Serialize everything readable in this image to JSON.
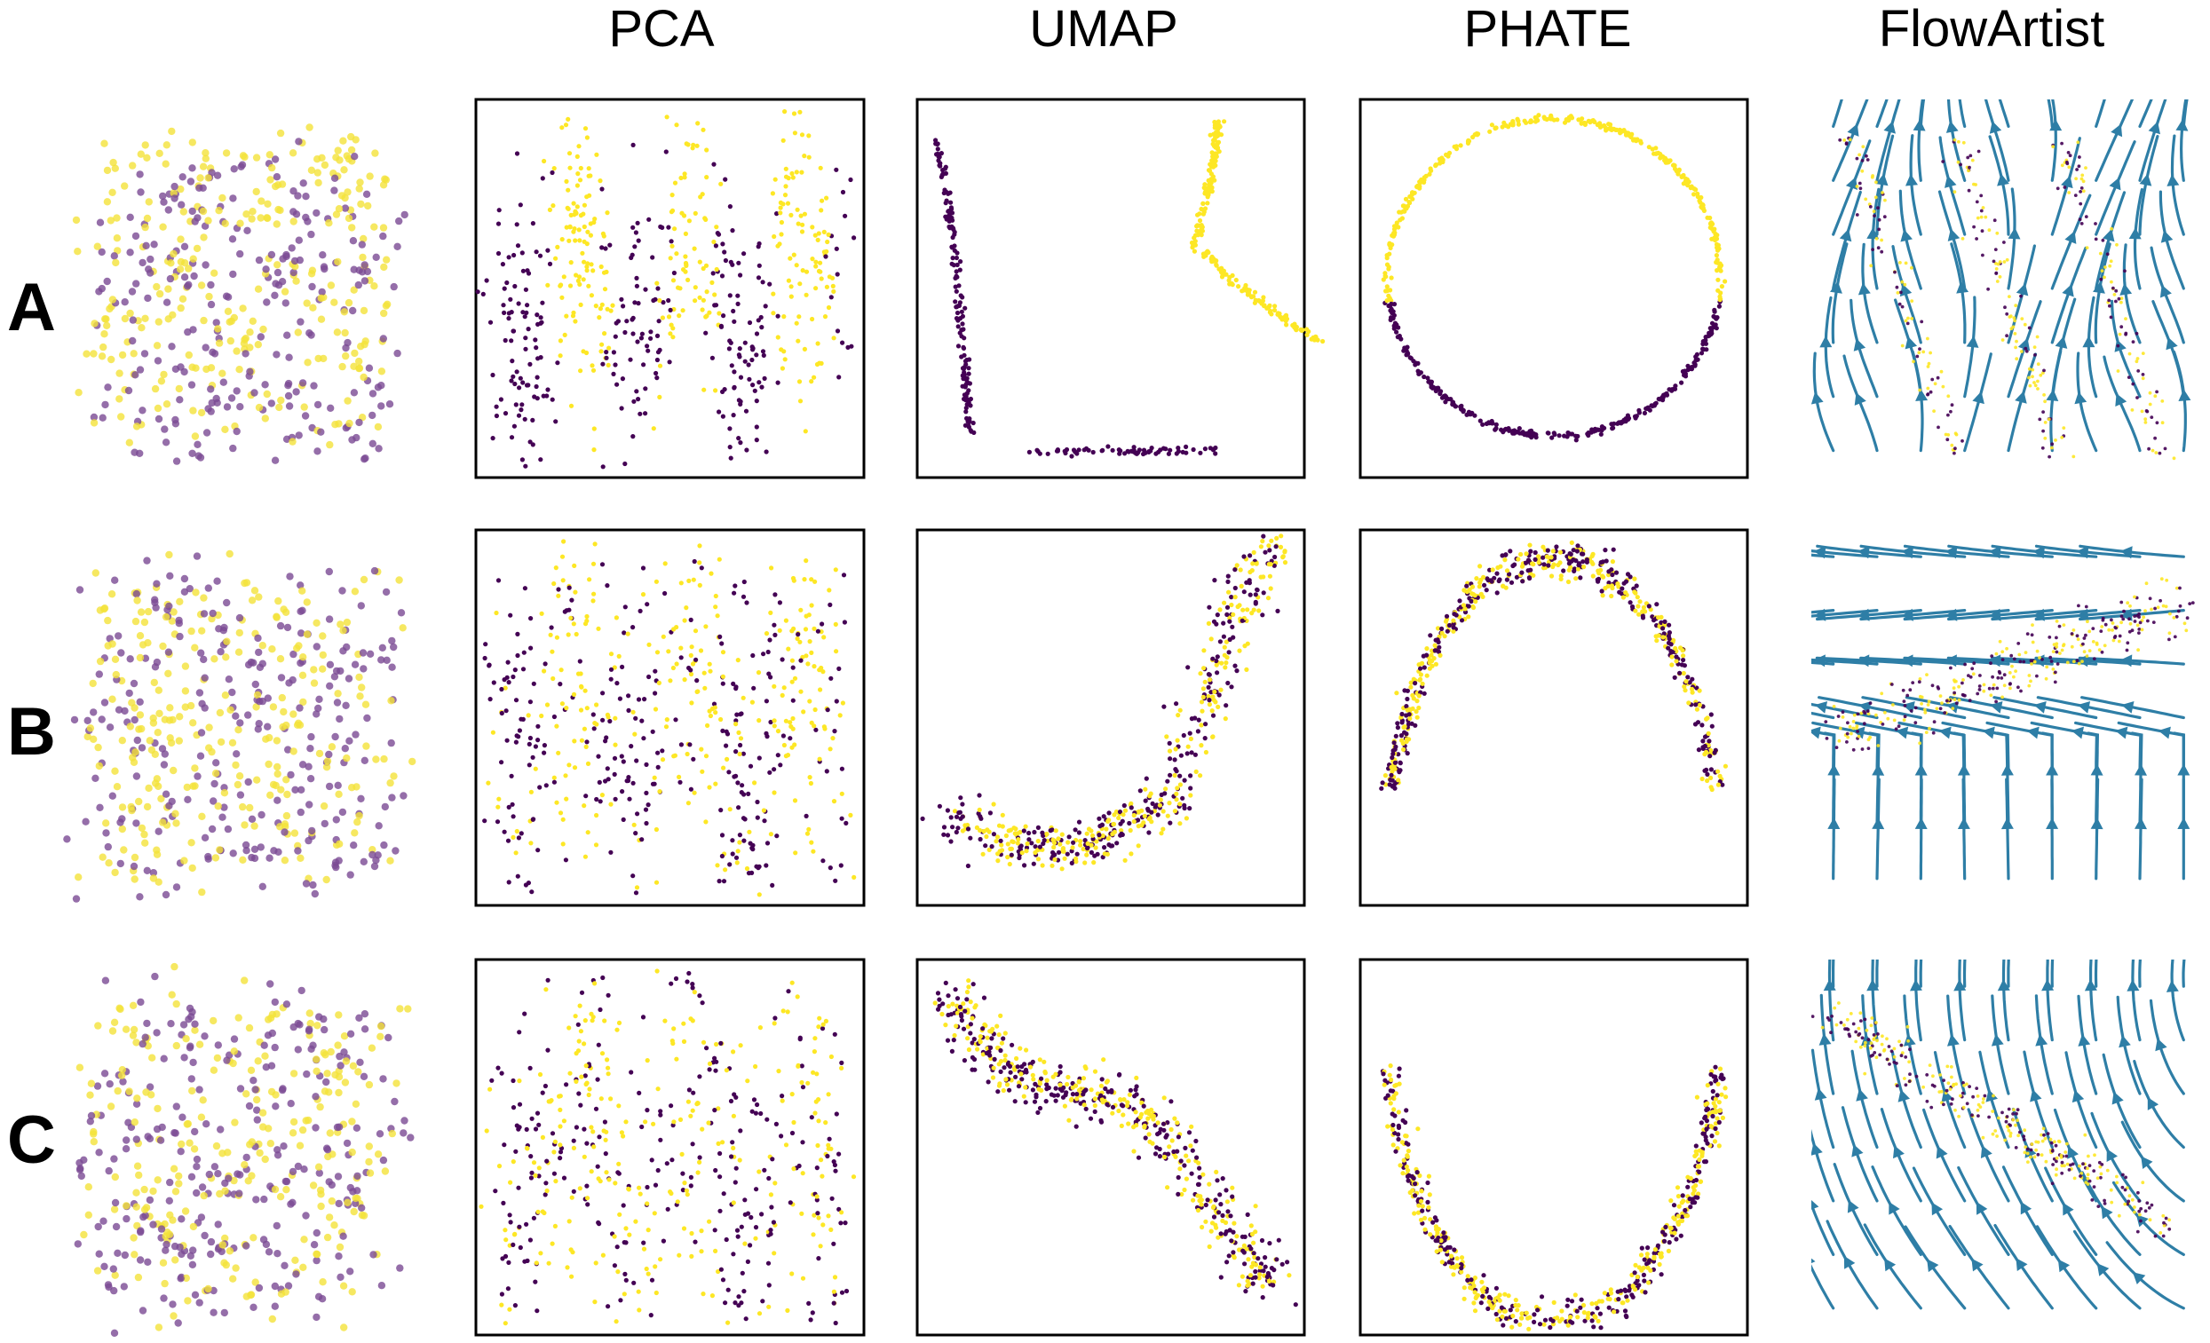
{
  "figure": {
    "columns": [
      "PCA",
      "UMAP",
      "PHATE",
      "FlowArtist"
    ],
    "rows": [
      "A",
      "B",
      "C"
    ]
  },
  "colors": {
    "class_0": "#440154",
    "class_1": "#fde725",
    "raw_class_0": "#7a4a94",
    "raw_class_1": "#f4e23a",
    "flow_lines": "#2e7ea6",
    "frame": "#000000"
  },
  "chart_data": [
    {
      "type": "scatter",
      "row": "A",
      "column": "raw data (3D view)",
      "framed": false,
      "shape": "stacked-sinusoid-cube",
      "classes": 2
    },
    {
      "type": "scatter",
      "row": "A",
      "column": "PCA",
      "framed": true,
      "shape": "interleaved vertical stripes, class alternating",
      "classes": 2
    },
    {
      "type": "scatter",
      "row": "A",
      "column": "UMAP",
      "framed": true,
      "shape": "separated curves: class 0 left L-curve, class 1 right J-curve",
      "classes": 2
    },
    {
      "type": "scatter",
      "row": "A",
      "column": "PHATE",
      "framed": true,
      "shape": "ring: class 1 upper arc, class 0 lower arc",
      "classes": 2
    },
    {
      "type": "streamplot",
      "row": "A",
      "column": "FlowArtist",
      "framed": false,
      "overlay": "embedded points",
      "classes": 2
    },
    {
      "type": "scatter",
      "row": "B",
      "column": "raw data (3D view)",
      "framed": false,
      "shape": "noisy cube",
      "classes": 2
    },
    {
      "type": "scatter",
      "row": "B",
      "column": "PCA",
      "framed": true,
      "shape": "noisy stripes",
      "classes": 2
    },
    {
      "type": "scatter",
      "row": "B",
      "column": "UMAP",
      "framed": true,
      "shape": "curved arm, classes interleaved",
      "classes": 2
    },
    {
      "type": "scatter",
      "row": "B",
      "column": "PHATE",
      "framed": true,
      "shape": "double arch, classes layered",
      "classes": 2
    },
    {
      "type": "streamplot",
      "row": "B",
      "column": "FlowArtist",
      "framed": false,
      "overlay": "embedded points",
      "classes": 2
    },
    {
      "type": "scatter",
      "row": "C",
      "column": "raw data (3D view)",
      "framed": false,
      "shape": "very noisy cube",
      "classes": 2
    },
    {
      "type": "scatter",
      "row": "C",
      "column": "PCA",
      "framed": true,
      "shape": "mixed cloud",
      "classes": 2
    },
    {
      "type": "scatter",
      "row": "C",
      "column": "UMAP",
      "framed": true,
      "shape": "mixed diagonal band",
      "classes": 2
    },
    {
      "type": "scatter",
      "row": "C",
      "column": "PHATE",
      "framed": true,
      "shape": "U shape, classes mixed",
      "classes": 2
    },
    {
      "type": "streamplot",
      "row": "C",
      "column": "FlowArtist",
      "framed": false,
      "overlay": "embedded points",
      "classes": 2
    }
  ]
}
